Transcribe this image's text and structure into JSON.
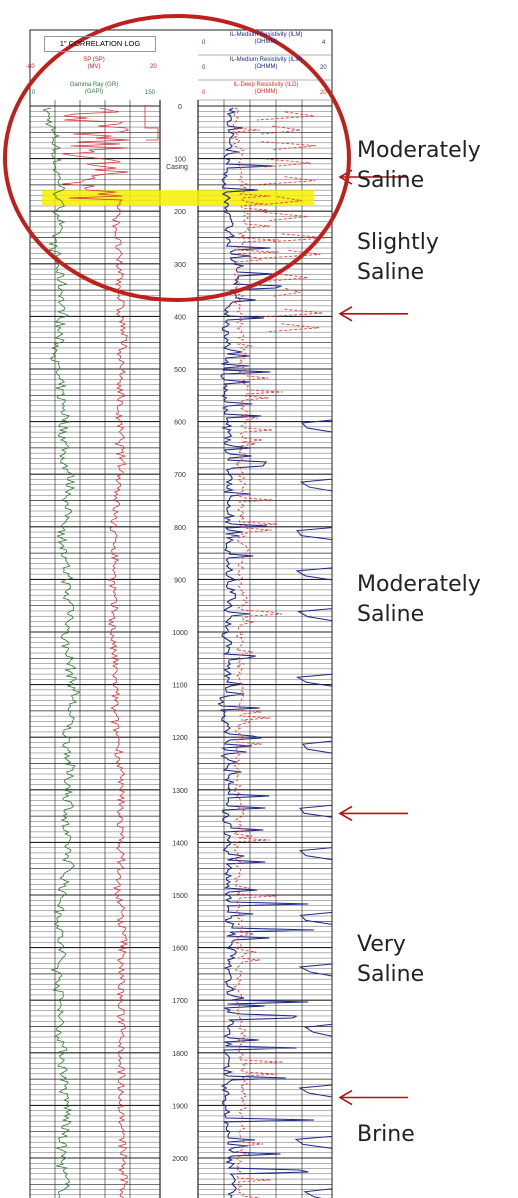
{
  "header": {
    "title": "1\" CORRELATION LOG",
    "sp": {
      "name": "SP (SP)",
      "unit": "(MV)",
      "min": "-80",
      "max": "20"
    },
    "gr": {
      "name": "Gamma Ray (GR)",
      "unit": "(GAPI)",
      "min": "0",
      "max": "150"
    },
    "ilm1": {
      "name": "IL-Medium Resistivity (ILM)",
      "unit": "(OHMM)",
      "min": "0",
      "max": "4"
    },
    "ilm2": {
      "name": "IL-Medium Resistivity (ILM)",
      "unit": "(OHMM)",
      "min": "0",
      "max": "20"
    },
    "ild": {
      "name": "IL-Deep Resistivity (ILD)",
      "unit": "(OHMM)",
      "min": "0",
      "max": "20"
    }
  },
  "depth_track": {
    "casing_label": "Casing",
    "depths": [
      "0",
      "100",
      "200",
      "300",
      "400",
      "500",
      "600",
      "700",
      "800",
      "900",
      "1000",
      "1100",
      "1200",
      "1300",
      "1400",
      "1500",
      "1600",
      "1700",
      "1800",
      "1900",
      "2000"
    ]
  },
  "zones": [
    {
      "line1": "Moderately",
      "line2": "Saline"
    },
    {
      "line1": "Slightly",
      "line2": "Saline"
    },
    {
      "line1": "Moderately",
      "line2": "Saline"
    },
    {
      "line1": "Very",
      "line2": "Saline"
    },
    {
      "line1": "Brine",
      "line2": ""
    }
  ],
  "colors": {
    "sp_curve": "#d8323a",
    "gr_curve": "#2e7d32",
    "ilm_curve": "#1f2a8a",
    "ild_curve": "#e0443c",
    "highlight": "#f5f000",
    "circle": "#c0201c",
    "arrow": "#b01010",
    "grid": "#222222"
  },
  "markers": {
    "casing_depth": 140,
    "highlight_top_depth": 160,
    "highlight_bottom_depth": 190,
    "arrow_depths": [
      135,
      395,
      1345,
      1885
    ]
  }
}
